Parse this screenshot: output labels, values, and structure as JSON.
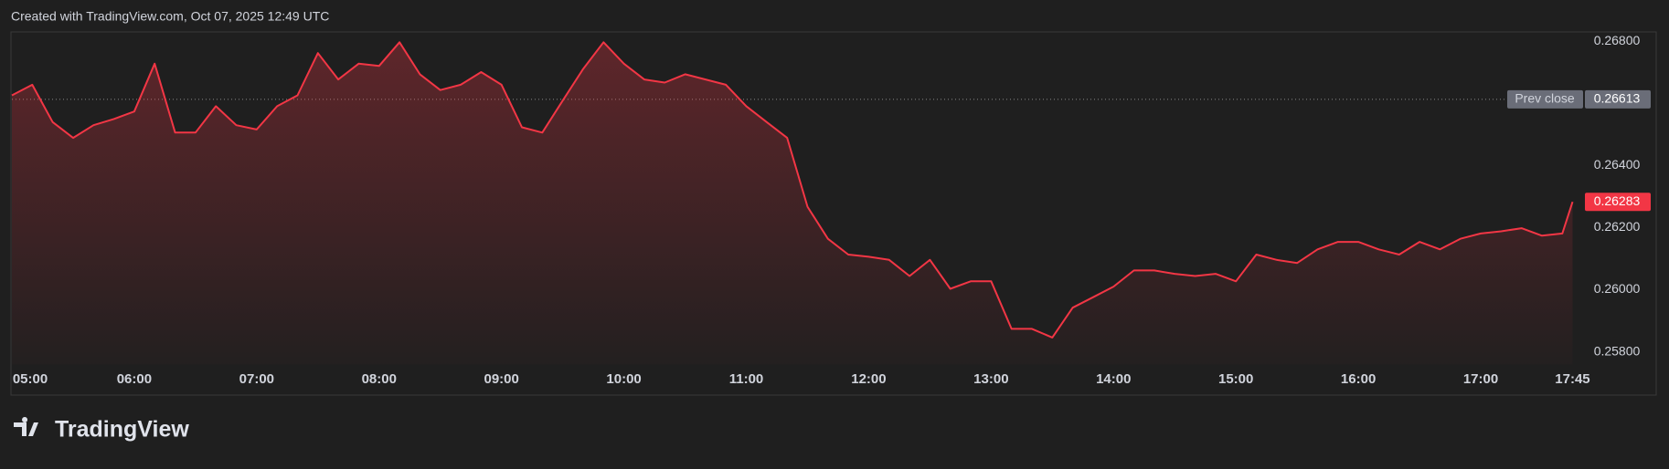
{
  "chart_data": {
    "type": "area",
    "title": "Created with TradingView.com, Oct 07, 2025 12:49 UTC",
    "watermark": "TradingView",
    "color": "#f23645",
    "x": [
      "05:00",
      "05:10",
      "05:20",
      "05:30",
      "05:40",
      "05:50",
      "06:00",
      "06:10",
      "06:20",
      "06:30",
      "06:40",
      "06:50",
      "07:00",
      "07:10",
      "07:20",
      "07:30",
      "07:40",
      "07:50",
      "08:00",
      "08:10",
      "08:20",
      "08:30",
      "08:40",
      "08:50",
      "09:00",
      "09:10",
      "09:20",
      "09:30",
      "09:40",
      "09:50",
      "10:00",
      "10:10",
      "10:20",
      "10:30",
      "10:40",
      "10:50",
      "11:00",
      "11:10",
      "11:20",
      "11:30",
      "11:40",
      "11:50",
      "12:00",
      "12:10",
      "12:20",
      "12:30",
      "12:40",
      "12:50",
      "13:00",
      "13:10",
      "13:20",
      "13:30",
      "13:40",
      "13:50",
      "14:00",
      "14:10",
      "14:20",
      "14:30",
      "14:40",
      "14:50",
      "15:00",
      "15:10",
      "15:20",
      "15:30",
      "15:40",
      "15:50",
      "16:00",
      "16:10",
      "16:20",
      "16:30",
      "16:40",
      "16:50",
      "17:00",
      "17:10",
      "17:20",
      "17:30",
      "17:40",
      "17:45"
    ],
    "values": [
      0.26626,
      0.2666,
      0.2654,
      0.26489,
      0.2653,
      0.2655,
      0.26574,
      0.26728,
      0.26506,
      0.26506,
      0.26591,
      0.2653,
      0.26516,
      0.26591,
      0.26626,
      0.26762,
      0.26677,
      0.26728,
      0.26721,
      0.26797,
      0.26694,
      0.26643,
      0.2666,
      0.26701,
      0.2666,
      0.26523,
      0.26506,
      0.26609,
      0.26711,
      0.26797,
      0.26728,
      0.26677,
      0.26667,
      0.26694,
      0.26677,
      0.2666,
      0.26591,
      0.2654,
      0.26489,
      0.26267,
      0.26164,
      0.26113,
      0.26106,
      0.26096,
      0.26044,
      0.26096,
      0.26003,
      0.26027,
      0.26027,
      0.25874,
      0.25874,
      0.25846,
      0.25942,
      0.25976,
      0.2601,
      0.26062,
      0.26062,
      0.26051,
      0.26044,
      0.26051,
      0.26027,
      0.26113,
      0.26096,
      0.26086,
      0.2613,
      0.26154,
      0.26154,
      0.2613,
      0.26113,
      0.26154,
      0.2613,
      0.26164,
      0.26181,
      0.26188,
      0.26198,
      0.26174,
      0.26181,
      0.26283
    ],
    "xticks": [
      "05:00",
      "06:00",
      "07:00",
      "08:00",
      "09:00",
      "10:00",
      "11:00",
      "12:00",
      "13:00",
      "14:00",
      "15:00",
      "16:00",
      "17:00",
      "17:45"
    ],
    "ylim": [
      0.25759,
      0.26827
    ],
    "yticks": [
      {
        "value": 0.258,
        "label": "0.25800"
      },
      {
        "value": 0.26,
        "label": "0.26000"
      },
      {
        "value": 0.262,
        "label": "0.26200"
      },
      {
        "value": 0.264,
        "label": "0.26400"
      },
      {
        "value": 0.268,
        "label": "0.26800"
      }
    ],
    "prev_close": {
      "label": "Prev close",
      "value": 0.26613
    },
    "grid": false
  }
}
